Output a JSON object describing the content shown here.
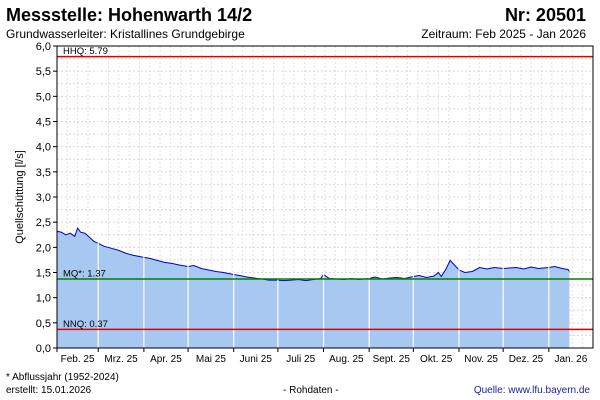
{
  "header": {
    "title": "Messstelle: Hohenwarth 14/2",
    "number": "Nr: 20501",
    "aquifer": "Grundwasserleiter: Kristallines Grundgebirge",
    "period": "Zeitraum: Feb 2025 - Jan 2026"
  },
  "footer": {
    "note": "* Abflussjahr (1952-2024)",
    "created_label": "erstellt:",
    "created_date": "15.01.2026",
    "raw": "- Rohdaten -",
    "source_label": "Quelle:",
    "source_url": "www.lfu.bayern.de"
  },
  "chart_data": {
    "type": "area",
    "ylabel": "Quellschüttung [l/s]",
    "xlabel": "",
    "ylim": [
      0,
      6.0
    ],
    "yticks": [
      "0,0",
      "0,5",
      "1,0",
      "1,5",
      "2,0",
      "2,5",
      "3,0",
      "3,5",
      "4,0",
      "4,5",
      "5,0",
      "5,5",
      "6,0"
    ],
    "ytick_values": [
      0,
      0.5,
      1.0,
      1.5,
      2.0,
      2.5,
      3.0,
      3.5,
      4.0,
      4.5,
      5.0,
      5.5,
      6.0
    ],
    "xlim": [
      "2025-02-01",
      "2026-01-31"
    ],
    "xticks": [
      "Feb. 25",
      "Mrz. 25",
      "Apr. 25",
      "Mai 25",
      "Juni 25",
      "Juli 25",
      "Aug. 25",
      "Sept. 25",
      "Okt. 25",
      "Nov. 25",
      "Dez. 25",
      "Jan. 26"
    ],
    "xtick_dates": [
      "2025-02-01",
      "2025-03-01",
      "2025-04-01",
      "2025-05-01",
      "2025-06-01",
      "2025-07-01",
      "2025-08-01",
      "2025-09-01",
      "2025-10-01",
      "2025-11-01",
      "2025-12-01",
      "2026-01-01"
    ],
    "grid": true,
    "reference_lines": [
      {
        "label": "HHQ: 5.79",
        "value": 5.79,
        "color": "#dd0000"
      },
      {
        "label": "MQ*: 1.37",
        "value": 1.37,
        "color": "#008000"
      },
      {
        "label": "NNQ: 0.37",
        "value": 0.37,
        "color": "#dd0000"
      }
    ],
    "series": [
      {
        "line_color": "#0000cc",
        "fill_color": "#a7c8f0",
        "x": [
          "2025-02-01",
          "2025-02-04",
          "2025-02-07",
          "2025-02-10",
          "2025-02-13",
          "2025-02-15",
          "2025-02-17",
          "2025-02-20",
          "2025-02-23",
          "2025-02-26",
          "2025-03-01",
          "2025-03-05",
          "2025-03-10",
          "2025-03-15",
          "2025-03-20",
          "2025-03-25",
          "2025-04-01",
          "2025-04-05",
          "2025-04-10",
          "2025-04-15",
          "2025-04-20",
          "2025-04-25",
          "2025-05-01",
          "2025-05-05",
          "2025-05-10",
          "2025-05-15",
          "2025-05-20",
          "2025-05-25",
          "2025-06-01",
          "2025-06-05",
          "2025-06-10",
          "2025-06-15",
          "2025-06-20",
          "2025-06-25",
          "2025-07-01",
          "2025-07-05",
          "2025-07-10",
          "2025-07-15",
          "2025-07-20",
          "2025-07-25",
          "2025-07-30",
          "2025-08-01",
          "2025-08-05",
          "2025-08-10",
          "2025-08-15",
          "2025-08-20",
          "2025-08-25",
          "2025-09-01",
          "2025-09-05",
          "2025-09-10",
          "2025-09-15",
          "2025-09-20",
          "2025-09-25",
          "2025-10-01",
          "2025-10-05",
          "2025-10-10",
          "2025-10-15",
          "2025-10-18",
          "2025-10-20",
          "2025-10-23",
          "2025-10-26",
          "2025-11-01",
          "2025-11-05",
          "2025-11-10",
          "2025-11-15",
          "2025-11-20",
          "2025-11-25",
          "2025-12-01",
          "2025-12-05",
          "2025-12-10",
          "2025-12-15",
          "2025-12-20",
          "2025-12-25",
          "2026-01-01",
          "2026-01-05",
          "2026-01-10",
          "2026-01-14",
          "2026-01-15"
        ],
        "values": [
          2.32,
          2.3,
          2.25,
          2.28,
          2.22,
          2.38,
          2.3,
          2.28,
          2.2,
          2.12,
          2.08,
          2.02,
          1.98,
          1.94,
          1.88,
          1.84,
          1.8,
          1.78,
          1.74,
          1.7,
          1.68,
          1.65,
          1.62,
          1.64,
          1.58,
          1.55,
          1.52,
          1.5,
          1.46,
          1.44,
          1.41,
          1.39,
          1.37,
          1.35,
          1.35,
          1.34,
          1.35,
          1.36,
          1.34,
          1.36,
          1.38,
          1.46,
          1.38,
          1.37,
          1.36,
          1.38,
          1.36,
          1.38,
          1.41,
          1.37,
          1.39,
          1.4,
          1.38,
          1.42,
          1.44,
          1.4,
          1.43,
          1.5,
          1.42,
          1.56,
          1.74,
          1.55,
          1.5,
          1.52,
          1.6,
          1.57,
          1.6,
          1.58,
          1.59,
          1.6,
          1.57,
          1.61,
          1.58,
          1.6,
          1.62,
          1.58,
          1.56,
          1.52
        ]
      }
    ]
  }
}
